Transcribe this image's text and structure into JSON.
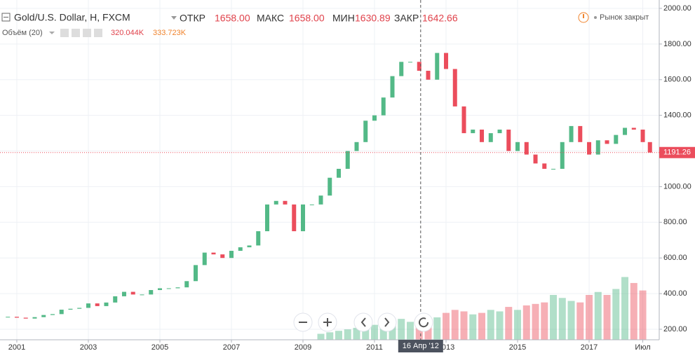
{
  "header": {
    "title": "Gold/U.S. Dollar, H, FXCM",
    "open_label": "ОТКР",
    "open": "1658.00",
    "high_label": "МАКС",
    "high": "1658.00",
    "low_label": "МИН",
    "low": "1630.89",
    "close_label": "ЗАКР",
    "close": "1642.66",
    "status": "Рынок закрыт",
    "volume_title": "Объём (20)",
    "volume_1": "320.044K",
    "volume_2": "333.723K"
  },
  "chart_data": {
    "type": "candlestick",
    "x": [
      2000.75,
      2001,
      2001.25,
      2001.5,
      2001.75,
      2002,
      2002.25,
      2002.5,
      2002.75,
      2003,
      2003.25,
      2003.5,
      2003.75,
      2004,
      2004.25,
      2004.5,
      2004.75,
      2005,
      2005.25,
      2005.5,
      2005.75,
      2006,
      2006.25,
      2006.5,
      2006.75,
      2007,
      2007.25,
      2007.5,
      2007.75,
      2008,
      2008.25,
      2008.5,
      2008.75,
      2009,
      2009.25,
      2009.5,
      2009.75,
      2010,
      2010.25,
      2010.5,
      2010.75,
      2011,
      2011.25,
      2011.5,
      2011.75,
      2012,
      2012.25,
      2012.5,
      2012.75,
      2013,
      2013.25,
      2013.5,
      2013.75,
      2014,
      2014.25,
      2014.5,
      2014.75,
      2015,
      2015.25,
      2015.5,
      2015.75,
      2016,
      2016.25,
      2016.5,
      2016.75,
      2017,
      2017.25,
      2017.5,
      2017.75,
      2018,
      2018.25,
      2018.5,
      2018.7
    ],
    "values": [
      270,
      265,
      260,
      268,
      280,
      285,
      310,
      315,
      320,
      345,
      330,
      350,
      385,
      410,
      395,
      395,
      420,
      430,
      430,
      435,
      470,
      560,
      630,
      620,
      600,
      640,
      660,
      670,
      750,
      900,
      920,
      900,
      750,
      900,
      900,
      950,
      1050,
      1100,
      1200,
      1250,
      1370,
      1400,
      1500,
      1620,
      1700,
      1700,
      1650,
      1600,
      1750,
      1660,
      1450,
      1300,
      1320,
      1250,
      1300,
      1320,
      1200,
      1250,
      1180,
      1130,
      1100,
      1100,
      1250,
      1340,
      1250,
      1180,
      1260,
      1240,
      1290,
      1330,
      1320,
      1250,
      1191.26
    ],
    "up_color": "#53b987",
    "down_color": "#eb4d5c",
    "volume": {
      "x": [
        2009.5,
        2009.75,
        2010,
        2010.25,
        2010.5,
        2010.75,
        2011,
        2011.25,
        2011.5,
        2011.75,
        2012,
        2012.25,
        2012.5,
        2012.75,
        2013,
        2013.25,
        2013.5,
        2013.75,
        2014,
        2014.25,
        2014.5,
        2014.75,
        2015,
        2015.25,
        2015.5,
        2015.75,
        2016,
        2016.25,
        2016.5,
        2016.75,
        2017,
        2017.25,
        2017.5,
        2017.75,
        2018,
        2018.25,
        2018.5
      ],
      "values": [
        40,
        50,
        60,
        70,
        80,
        90,
        100,
        110,
        130,
        140,
        120,
        110,
        130,
        150,
        180,
        200,
        190,
        170,
        180,
        200,
        190,
        220,
        200,
        230,
        240,
        250,
        300,
        280,
        260,
        250,
        300,
        320,
        300,
        340,
        420,
        380,
        330
      ],
      "y2lim": [
        0,
        1500
      ]
    },
    "xlim": [
      2000.53,
      2018.96
    ],
    "xticks": [
      2001,
      2003,
      2005,
      2007,
      2009,
      2011,
      2013,
      2015,
      2017,
      {
        "value": 2018.5,
        "label": "Июл"
      }
    ],
    "ylim": [
      141,
      2047
    ],
    "yticks": [
      {
        "value": 200,
        "label": "200.00"
      },
      {
        "value": 400,
        "label": "400.00"
      },
      {
        "value": 600,
        "label": "600.00"
      },
      {
        "value": 800,
        "label": "800.00"
      },
      {
        "value": 1000,
        "label": "1000.00"
      },
      {
        "value": 1200,
        "label": "1200.00"
      },
      {
        "value": 1400,
        "label": "1400.00"
      },
      {
        "value": 1600,
        "label": "1600.00"
      },
      {
        "value": 1800,
        "label": "1800.00"
      },
      {
        "value": 2000,
        "label": "2000.00"
      }
    ],
    "grid": true,
    "crosshair": {
      "x": 2012.29,
      "label": "16 Апр '12"
    }
  }
}
